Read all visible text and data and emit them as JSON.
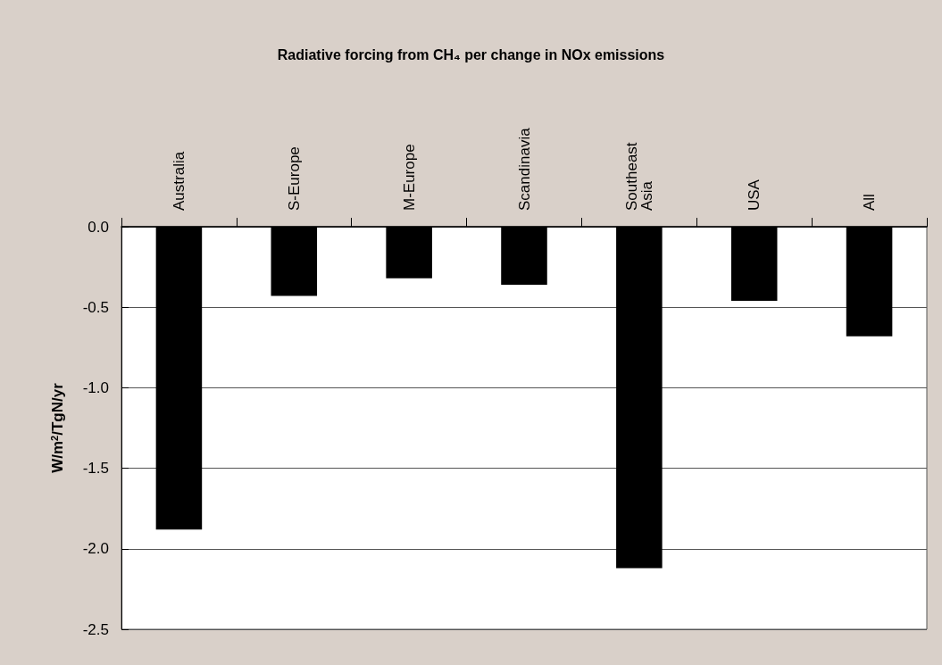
{
  "chart_data": {
    "type": "bar",
    "title": "Radiative forcing from CH₄ per change in NOx emissions",
    "ylabel": "W/m$^{2}$/TgN/yr",
    "categories": [
      "Australia",
      "S-Europe",
      "M-Europe",
      "Scandinavia",
      "Southeast Asia",
      "USA",
      "All"
    ],
    "values": [
      -1.88,
      -0.43,
      -0.32,
      -0.36,
      -2.12,
      -0.46,
      -0.68
    ],
    "color": "#000000",
    "ylim": [
      -2.5,
      0
    ],
    "yticks": [
      {
        "value": -2.5,
        "label": "-2.5"
      },
      {
        "value": -2,
        "label": "-2.0"
      },
      {
        "value": -1.5,
        "label": "-1.5"
      },
      {
        "value": -1,
        "label": "-1.0"
      },
      {
        "value": -0.5,
        "label": "-0.5"
      },
      {
        "value": 0,
        "label": "0.0"
      }
    ],
    "grid": "y"
  }
}
